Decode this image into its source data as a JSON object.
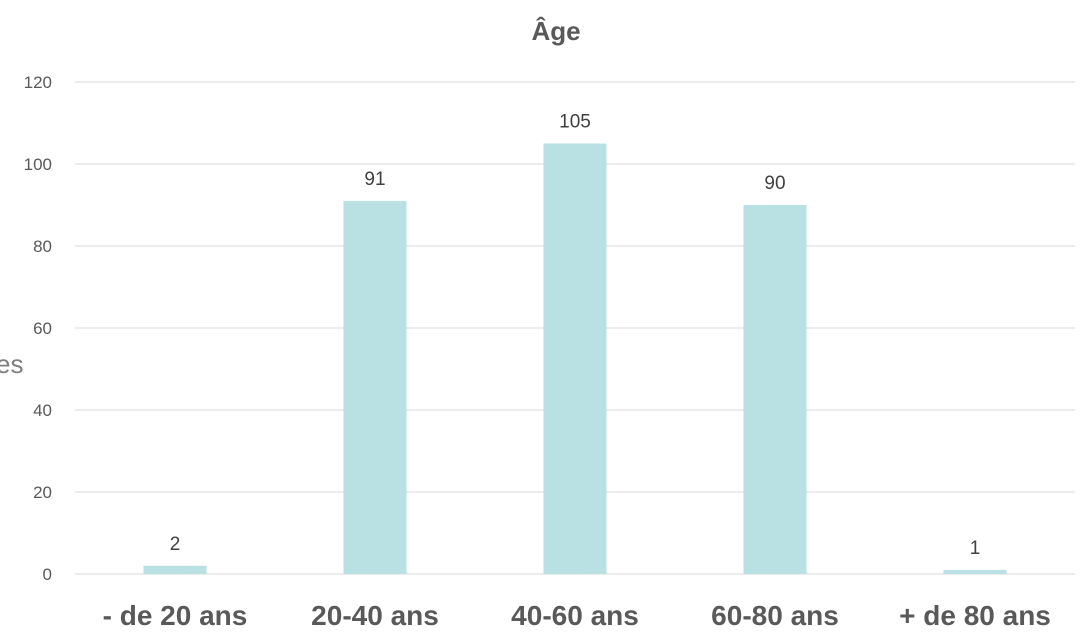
{
  "partial_text": "es",
  "chart_data": {
    "type": "bar",
    "title": "Âge",
    "xlabel": "",
    "ylabel": "",
    "categories": [
      "- de 20 ans",
      "20-40 ans",
      "40-60 ans",
      "60-80 ans",
      "+ de 80 ans"
    ],
    "values": [
      2,
      91,
      105,
      90,
      1
    ],
    "data_labels": [
      "2",
      "91",
      "105",
      "90",
      "1"
    ],
    "ylim": [
      0,
      120
    ],
    "yticks": [
      "0",
      "20",
      "40",
      "60",
      "80",
      "100",
      "120"
    ],
    "grid": true,
    "legend": "none",
    "bar_color": "#b9e0e3"
  }
}
